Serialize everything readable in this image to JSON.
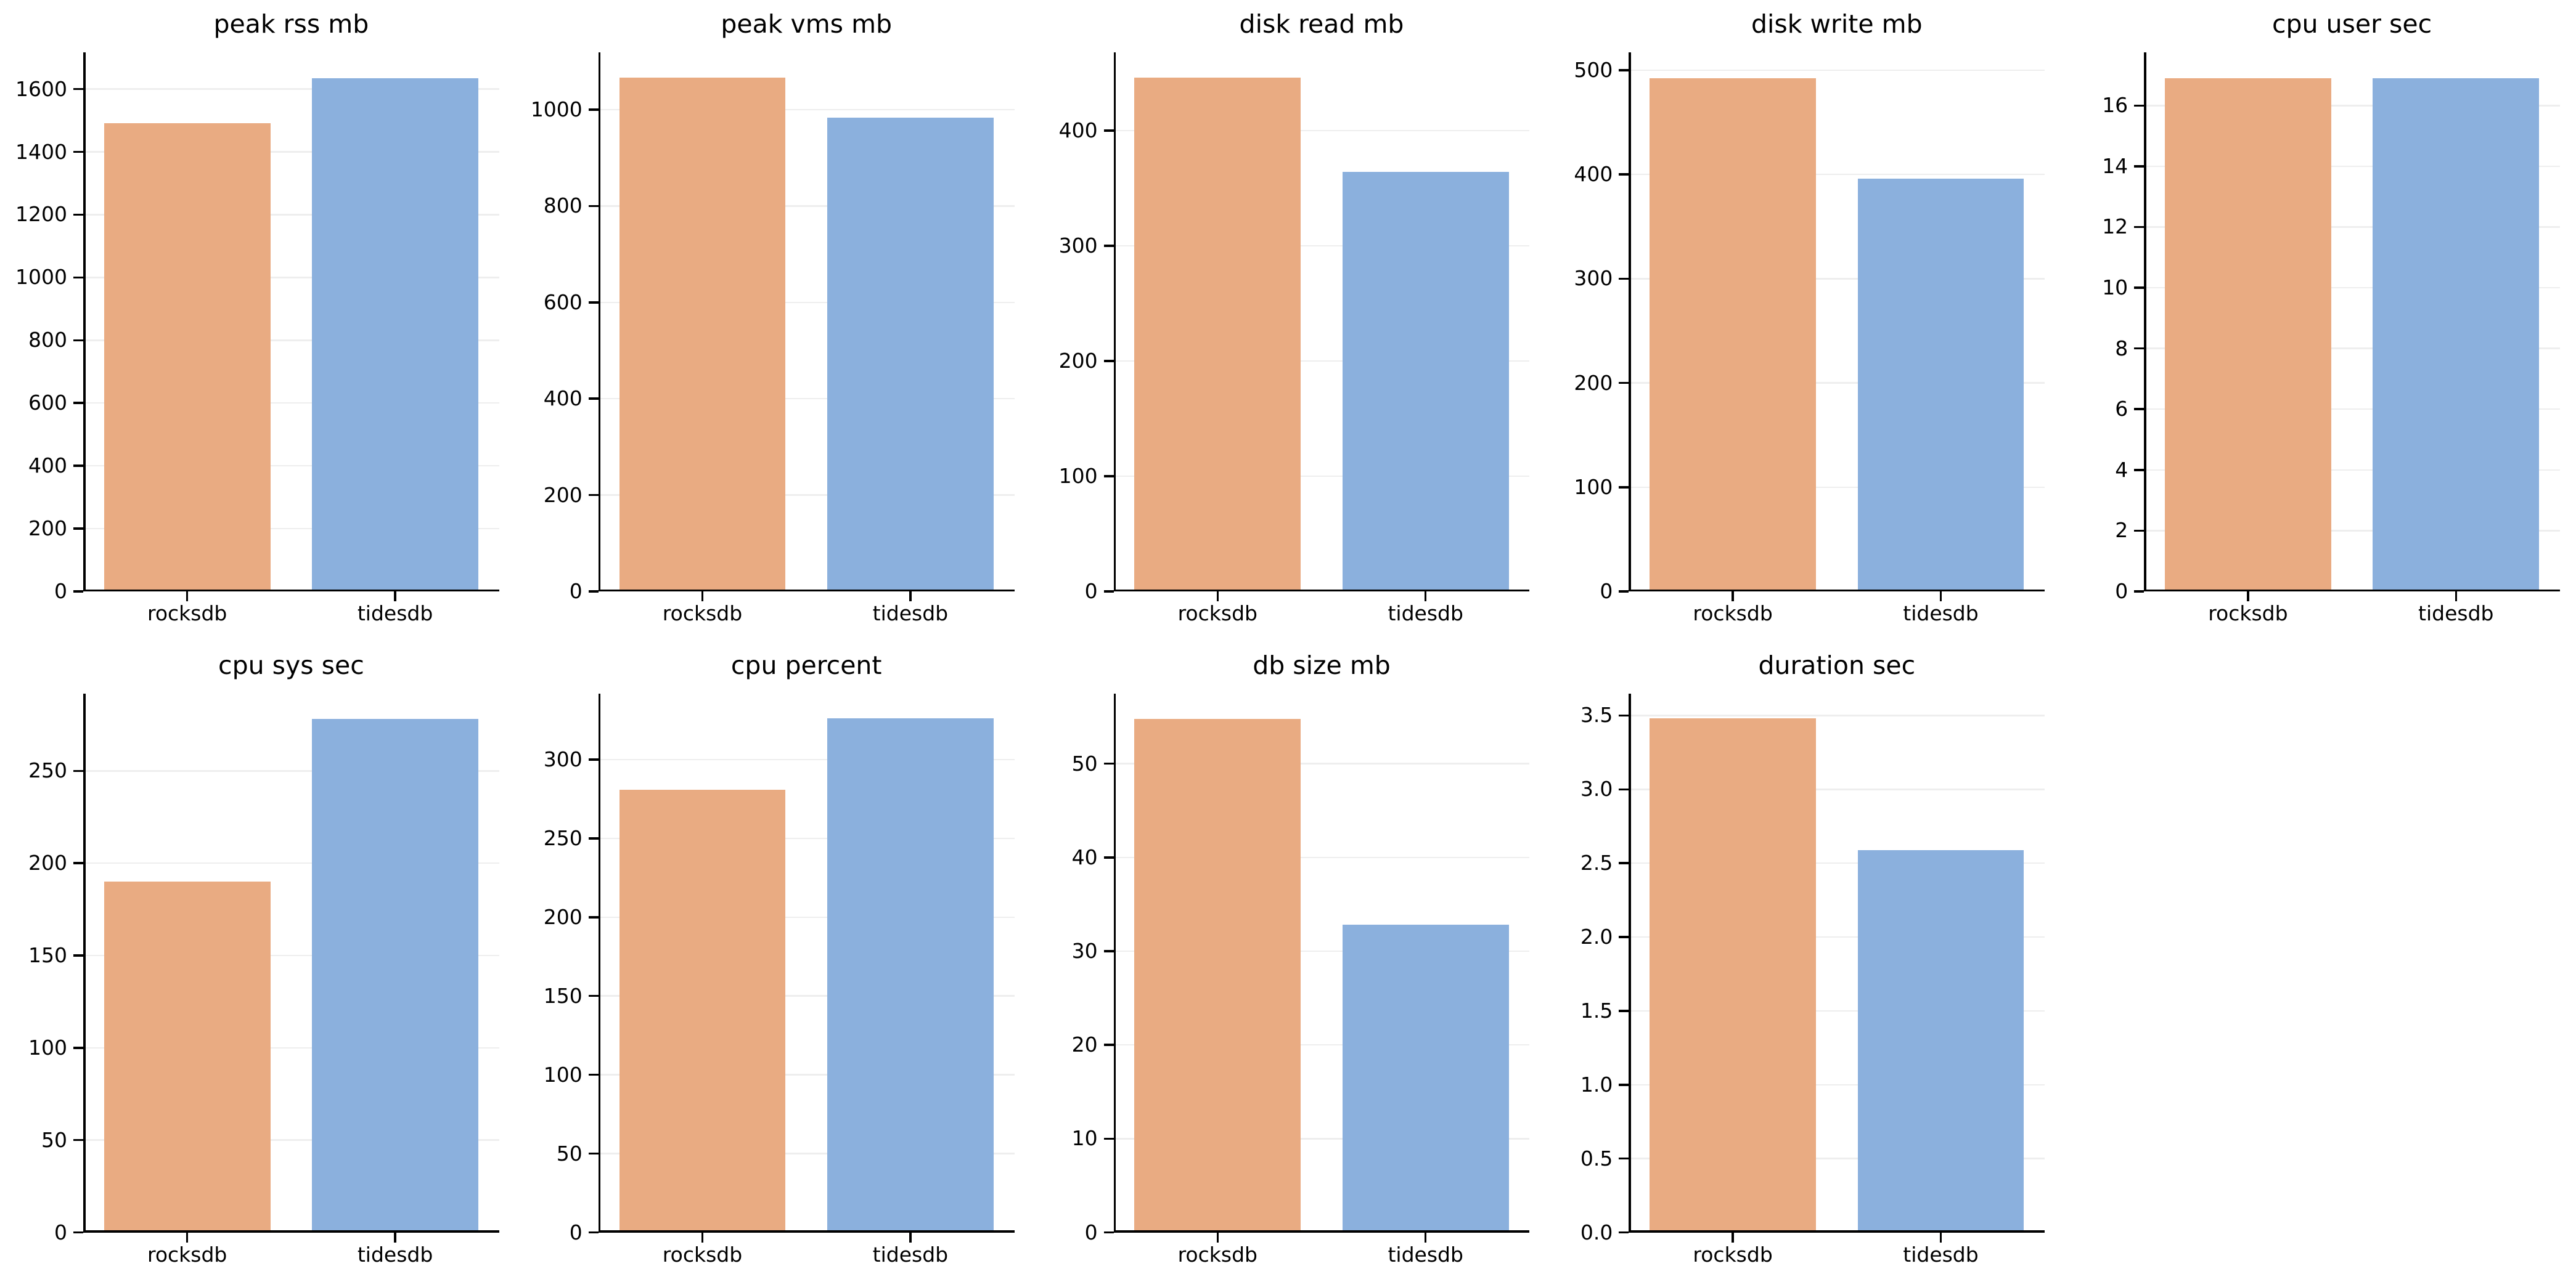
{
  "figure": {
    "background": "#ffffff",
    "palette": {
      "rocksdb": "#e9ab82",
      "tidesdb": "#8bb0dd"
    },
    "grid_color": "#eeeeee",
    "spine_color": "#000000",
    "text_color": "#000000",
    "layout": {
      "columns": 5,
      "rows": 2,
      "legend": "none",
      "grid": "horizontal-faint"
    }
  },
  "chart_data": [
    {
      "type": "bar",
      "title": "peak rss mb",
      "categories": [
        "rocksdb",
        "tidesdb"
      ],
      "values": [
        1492,
        1635
      ],
      "ylim": [
        0,
        1717
      ],
      "yticks": [
        0,
        200,
        400,
        600,
        800,
        1000,
        1200,
        1400,
        1600
      ],
      "ytick_labels": [
        "0",
        "200",
        "400",
        "600",
        "800",
        "1000",
        "1200",
        "1400",
        "1600"
      ]
    },
    {
      "type": "bar",
      "title": "peak vms mb",
      "categories": [
        "rocksdb",
        "tidesdb"
      ],
      "values": [
        1066,
        983
      ],
      "ylim": [
        0,
        1119
      ],
      "yticks": [
        0,
        200,
        400,
        600,
        800,
        1000
      ],
      "ytick_labels": [
        "0",
        "200",
        "400",
        "600",
        "800",
        "1000"
      ]
    },
    {
      "type": "bar",
      "title": "disk read mb",
      "categories": [
        "rocksdb",
        "tidesdb"
      ],
      "values": [
        446,
        364
      ],
      "ylim": [
        0,
        468
      ],
      "yticks": [
        0,
        100,
        200,
        300,
        400
      ],
      "ytick_labels": [
        "0",
        "100",
        "200",
        "300",
        "400"
      ]
    },
    {
      "type": "bar",
      "title": "disk write mb",
      "categories": [
        "rocksdb",
        "tidesdb"
      ],
      "values": [
        492,
        396
      ],
      "ylim": [
        0,
        517
      ],
      "yticks": [
        0,
        100,
        200,
        300,
        400,
        500
      ],
      "ytick_labels": [
        "0",
        "100",
        "200",
        "300",
        "400",
        "500"
      ]
    },
    {
      "type": "bar",
      "title": "cpu user sec",
      "categories": [
        "rocksdb",
        "tidesdb"
      ],
      "values": [
        16.9,
        16.9
      ],
      "ylim": [
        0,
        17.75
      ],
      "yticks": [
        0,
        2,
        4,
        6,
        8,
        10,
        12,
        14,
        16
      ],
      "ytick_labels": [
        "0",
        "2",
        "4",
        "6",
        "8",
        "10",
        "12",
        "14",
        "16"
      ]
    },
    {
      "type": "bar",
      "title": "cpu sys sec",
      "categories": [
        "rocksdb",
        "tidesdb"
      ],
      "values": [
        190,
        278
      ],
      "ylim": [
        0,
        292
      ],
      "yticks": [
        0,
        50,
        100,
        150,
        200,
        250
      ],
      "ytick_labels": [
        "0",
        "50",
        "100",
        "150",
        "200",
        "250"
      ]
    },
    {
      "type": "bar",
      "title": "cpu percent",
      "categories": [
        "rocksdb",
        "tidesdb"
      ],
      "values": [
        281,
        326
      ],
      "ylim": [
        0,
        342
      ],
      "yticks": [
        0,
        50,
        100,
        150,
        200,
        250,
        300
      ],
      "ytick_labels": [
        "0",
        "50",
        "100",
        "150",
        "200",
        "250",
        "300"
      ]
    },
    {
      "type": "bar",
      "title": "db size mb",
      "categories": [
        "rocksdb",
        "tidesdb"
      ],
      "values": [
        54.8,
        32.8
      ],
      "ylim": [
        0,
        57.5
      ],
      "yticks": [
        0,
        10,
        20,
        30,
        40,
        50
      ],
      "ytick_labels": [
        "0",
        "10",
        "20",
        "30",
        "40",
        "50"
      ]
    },
    {
      "type": "bar",
      "title": "duration sec",
      "categories": [
        "rocksdb",
        "tidesdb"
      ],
      "values": [
        3.48,
        2.59
      ],
      "ylim": [
        0,
        3.65
      ],
      "yticks": [
        0,
        0.5,
        1.0,
        1.5,
        2.0,
        2.5,
        3.0,
        3.5
      ],
      "ytick_labels": [
        "0.0",
        "0.5",
        "1.0",
        "1.5",
        "2.0",
        "2.5",
        "3.0",
        "3.5"
      ]
    }
  ]
}
